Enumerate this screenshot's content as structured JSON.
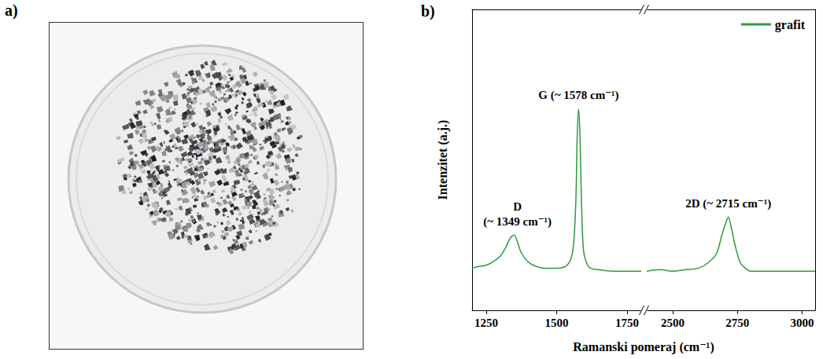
{
  "panel_a": {
    "letter": "a)"
  },
  "chart_data": {
    "type": "line",
    "panel_label": "b)",
    "x_label": "Ramanski pomeraj (cm⁻¹)",
    "y_label": "Intenzitet (a.j.)",
    "segments": [
      {
        "xlim": [
          1200,
          1800
        ],
        "xticks": [
          1250,
          1500,
          1750
        ]
      },
      {
        "xlim": [
          2400,
          3050
        ],
        "xticks": [
          2500,
          2750,
          3000
        ]
      }
    ],
    "ylim": [
      0,
      1
    ],
    "yticks": [],
    "tick_labels": "x",
    "grid": false,
    "legend": "upper right",
    "series": [
      {
        "name": "grafit",
        "color": "#2e9a3e",
        "x": [
          1200,
          1220,
          1250,
          1280,
          1300,
          1320,
          1335,
          1349,
          1360,
          1375,
          1400,
          1430,
          1460,
          1500,
          1530,
          1550,
          1560,
          1568,
          1573,
          1578,
          1583,
          1588,
          1595,
          1605,
          1620,
          1650,
          1700,
          1750,
          1800,
          2400,
          2450,
          2500,
          2550,
          2600,
          2640,
          2670,
          2690,
          2705,
          2715,
          2725,
          2740,
          2760,
          2780,
          2800,
          2850,
          2900,
          2950,
          3000,
          3050
        ],
        "values": [
          0.14,
          0.145,
          0.15,
          0.165,
          0.18,
          0.21,
          0.24,
          0.25,
          0.23,
          0.19,
          0.16,
          0.145,
          0.14,
          0.14,
          0.145,
          0.17,
          0.22,
          0.36,
          0.58,
          0.67,
          0.57,
          0.36,
          0.2,
          0.16,
          0.14,
          0.135,
          0.13,
          0.13,
          0.13,
          0.13,
          0.135,
          0.13,
          0.135,
          0.14,
          0.16,
          0.19,
          0.25,
          0.29,
          0.31,
          0.28,
          0.22,
          0.16,
          0.14,
          0.13,
          0.13,
          0.13,
          0.13,
          0.13,
          0.13
        ]
      }
    ],
    "annotations": [
      {
        "text": "D\n(~ 1349 cm⁻¹)",
        "x": 1349
      },
      {
        "text": "G (~ 1578 cm⁻¹)",
        "x": 1578
      },
      {
        "text": "2D (~ 2715 cm⁻¹)",
        "x": 2715
      }
    ]
  }
}
